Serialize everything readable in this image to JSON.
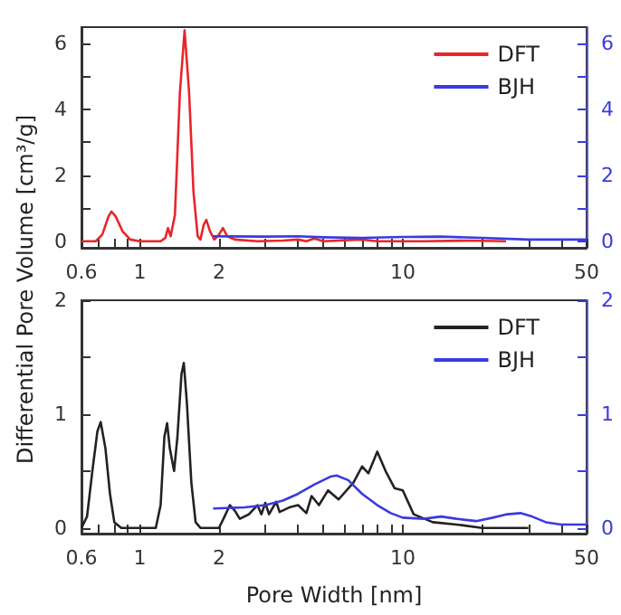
{
  "chart_data": [
    {
      "type": "line",
      "ylabel": "Differential Pore Volume [cm³/g]",
      "log": "x",
      "xlim": [
        0.6,
        50
      ],
      "xticks": [
        0.6,
        {
          "value": 0.7,
          "label": null
        },
        {
          "value": 0.8,
          "label": null
        },
        {
          "value": 0.9,
          "label": null
        },
        1,
        2,
        {
          "value": 3,
          "label": null
        },
        {
          "value": 4,
          "label": null
        },
        {
          "value": 5,
          "label": null
        },
        {
          "value": 6,
          "label": null
        },
        {
          "value": 7,
          "label": null
        },
        {
          "value": 8,
          "label": null
        },
        {
          "value": 9,
          "label": null
        },
        10,
        {
          "value": 20,
          "label": null
        },
        {
          "value": 30,
          "label": null
        },
        {
          "value": 40,
          "label": null
        },
        50
      ],
      "ylim": [
        -0.2,
        6.5
      ],
      "yticks": [
        0,
        {
          "value": 1,
          "label": null
        },
        2,
        {
          "value": 3,
          "label": null
        },
        4,
        {
          "value": 5,
          "label": null
        },
        6
      ],
      "y2lim": [
        -0.2,
        6.5
      ],
      "y2ticks": [
        0,
        {
          "value": 1,
          "label": null
        },
        2,
        {
          "value": 3,
          "label": null
        },
        4,
        {
          "value": 5,
          "label": null
        },
        6
      ],
      "legend": "top right",
      "grid": false,
      "series": [
        {
          "name": "DFT",
          "color": "#e8262a",
          "x": [
            0.6,
            0.68,
            0.72,
            0.76,
            0.78,
            0.81,
            0.86,
            0.92,
            1.0,
            1.2,
            1.25,
            1.28,
            1.31,
            1.36,
            1.42,
            1.48,
            1.54,
            1.6,
            1.66,
            1.7,
            1.75,
            1.79,
            1.85,
            1.92,
            2.0,
            2.07,
            2.15,
            2.3,
            2.8,
            3.5,
            4,
            4.3,
            4.6,
            5,
            6,
            7,
            8,
            12,
            18,
            24.7
          ],
          "values": [
            0,
            0,
            0.2,
            0.75,
            0.9,
            0.75,
            0.3,
            0.05,
            0,
            0,
            0.1,
            0.4,
            0.15,
            0.8,
            4.5,
            6.4,
            4.5,
            1.5,
            0.15,
            0.05,
            0.5,
            0.65,
            0.3,
            0.05,
            0.2,
            0.4,
            0.15,
            0.05,
            0,
            0.02,
            0.05,
            0,
            0.08,
            0,
            0.03,
            0.05,
            0,
            0,
            0.02,
            0
          ]
        },
        {
          "name": "BJH",
          "color": "#3a3ae0",
          "axis": "y2",
          "x": [
            1.9,
            3,
            4,
            5,
            7,
            10,
            14,
            20,
            30,
            50
          ],
          "values": [
            0.15,
            0.14,
            0.15,
            0.12,
            0.1,
            0.13,
            0.14,
            0.1,
            0.05,
            0.05
          ]
        }
      ]
    },
    {
      "type": "line",
      "xlabel": "Pore Width [nm]",
      "log": "x",
      "xlim": [
        0.6,
        50
      ],
      "xticks": [
        0.6,
        {
          "value": 0.7,
          "label": null
        },
        {
          "value": 0.8,
          "label": null
        },
        {
          "value": 0.9,
          "label": null
        },
        1,
        2,
        {
          "value": 3,
          "label": null
        },
        {
          "value": 4,
          "label": null
        },
        {
          "value": 5,
          "label": null
        },
        {
          "value": 6,
          "label": null
        },
        {
          "value": 7,
          "label": null
        },
        {
          "value": 8,
          "label": null
        },
        {
          "value": 9,
          "label": null
        },
        10,
        {
          "value": 20,
          "label": null
        },
        {
          "value": 30,
          "label": null
        },
        {
          "value": 40,
          "label": null
        },
        50
      ],
      "ylim": [
        -0.05,
        2
      ],
      "yticks": [
        0,
        {
          "value": 0.5,
          "label": null
        },
        1,
        {
          "value": 1.5,
          "label": null
        },
        2
      ],
      "y2lim": [
        -0.05,
        2
      ],
      "y2ticks": [
        0,
        {
          "value": 0.5,
          "label": null
        },
        1,
        {
          "value": 1.5,
          "label": null
        },
        2
      ],
      "legend": "top right",
      "grid": false,
      "series": [
        {
          "name": "DFT",
          "color": "#222222",
          "x": [
            0.6,
            0.63,
            0.66,
            0.69,
            0.71,
            0.74,
            0.77,
            0.8,
            0.85,
            1.15,
            1.2,
            1.24,
            1.27,
            1.3,
            1.35,
            1.39,
            1.44,
            1.47,
            1.51,
            1.57,
            1.63,
            1.7,
            2.0,
            2.1,
            2.2,
            2.3,
            2.4,
            2.6,
            2.8,
            2.9,
            3.0,
            3.1,
            3.3,
            3.4,
            3.7,
            4.0,
            4.3,
            4.5,
            4.8,
            5.2,
            5.7,
            6.5,
            7.0,
            7.4,
            8.0,
            8.6,
            9.3,
            10,
            11,
            13,
            16,
            20,
            30
          ],
          "values": [
            0,
            0.1,
            0.5,
            0.85,
            0.93,
            0.7,
            0.3,
            0.05,
            0,
            0,
            0.2,
            0.8,
            0.92,
            0.7,
            0.5,
            0.8,
            1.35,
            1.45,
            1.1,
            0.4,
            0.05,
            0,
            0,
            0.1,
            0.2,
            0.15,
            0.08,
            0.12,
            0.2,
            0.12,
            0.22,
            0.12,
            0.23,
            0.14,
            0.18,
            0.2,
            0.13,
            0.28,
            0.2,
            0.33,
            0.25,
            0.4,
            0.54,
            0.48,
            0.67,
            0.5,
            0.35,
            0.33,
            0.12,
            0.05,
            0.03,
            0,
            0
          ]
        },
        {
          "name": "BJH",
          "color": "#3a3ae0",
          "axis": "y2",
          "x": [
            1.9,
            2.5,
            3,
            3.5,
            4,
            4.6,
            5.3,
            5.6,
            6.2,
            7,
            8,
            9,
            10,
            12,
            14,
            16,
            19,
            22,
            25,
            28,
            31,
            35,
            40,
            50
          ],
          "values": [
            0.17,
            0.18,
            0.2,
            0.24,
            0.3,
            0.38,
            0.45,
            0.46,
            0.42,
            0.3,
            0.2,
            0.13,
            0.09,
            0.08,
            0.1,
            0.08,
            0.06,
            0.09,
            0.12,
            0.13,
            0.1,
            0.05,
            0.03,
            0.03
          ]
        }
      ]
    }
  ]
}
